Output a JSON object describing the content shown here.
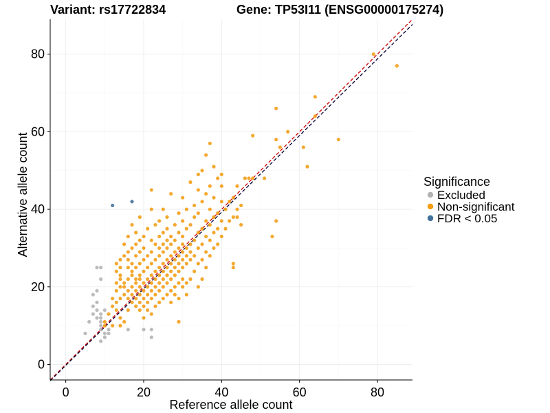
{
  "header": {
    "variant_label": "Variant: rs17722834",
    "gene_label": "Gene: TP53I11 (ENSG00000175274)"
  },
  "legend": {
    "title": "Significance",
    "items": [
      {
        "label": "Excluded",
        "color": "#b3b3b3"
      },
      {
        "label": "Non-significant",
        "color": "#f39c12"
      },
      {
        "label": "FDR < 0.05",
        "color": "#41709a"
      }
    ]
  },
  "chart_data": {
    "type": "scatter",
    "xlabel": "Reference allele count",
    "ylabel": "Alternative allele count",
    "xlim": [
      -4,
      89
    ],
    "ylim": [
      -4,
      89
    ],
    "xticks": [
      0,
      20,
      40,
      60,
      80
    ],
    "yticks": [
      0,
      20,
      40,
      60,
      80
    ],
    "grid": true,
    "legend_position": "right",
    "reference_lines": [
      {
        "kind": "identity",
        "color": "#cc0000",
        "style": "dashed"
      },
      {
        "kind": "fit",
        "color": "#000033",
        "style": "dashed"
      }
    ],
    "series": [
      {
        "name": "Excluded",
        "color": "#b3b3b3",
        "points": [
          [
            5,
            8
          ],
          [
            6,
            11
          ],
          [
            7,
            13
          ],
          [
            7,
            15
          ],
          [
            8,
            12
          ],
          [
            8,
            14
          ],
          [
            8,
            16
          ],
          [
            8,
            19
          ],
          [
            7,
            18
          ],
          [
            8,
            25
          ],
          [
            9,
            6
          ],
          [
            9,
            9
          ],
          [
            9,
            11
          ],
          [
            9,
            12
          ],
          [
            9,
            13
          ],
          [
            9,
            22
          ],
          [
            9,
            25
          ],
          [
            10,
            7
          ],
          [
            10,
            8
          ],
          [
            10,
            14
          ],
          [
            11,
            8
          ],
          [
            11,
            9
          ],
          [
            16,
            9
          ],
          [
            20,
            9
          ],
          [
            22,
            7
          ],
          [
            22,
            9
          ],
          [
            9,
            10
          ]
        ]
      },
      {
        "name": "Non-significant",
        "color": "#f39c12",
        "points": [
          [
            10,
            10
          ],
          [
            10,
            11
          ],
          [
            11,
            13
          ],
          [
            12,
            10
          ],
          [
            12,
            15
          ],
          [
            12,
            17
          ],
          [
            13,
            14
          ],
          [
            13,
            16
          ],
          [
            13,
            19
          ],
          [
            13,
            21
          ],
          [
            13,
            24
          ],
          [
            13,
            26
          ],
          [
            14,
            10
          ],
          [
            14,
            12
          ],
          [
            14,
            17
          ],
          [
            14,
            20
          ],
          [
            14,
            22
          ],
          [
            14,
            23
          ],
          [
            14,
            25
          ],
          [
            14,
            27
          ],
          [
            15,
            11
          ],
          [
            15,
            18
          ],
          [
            15,
            20
          ],
          [
            15,
            21
          ],
          [
            15,
            28
          ],
          [
            15,
            31
          ],
          [
            16,
            14
          ],
          [
            16,
            17
          ],
          [
            16,
            19
          ],
          [
            16,
            22
          ],
          [
            16,
            25
          ],
          [
            16,
            27
          ],
          [
            16,
            29
          ],
          [
            16,
            33
          ],
          [
            17,
            16
          ],
          [
            17,
            18
          ],
          [
            17,
            20
          ],
          [
            17,
            23
          ],
          [
            17,
            24
          ],
          [
            17,
            26
          ],
          [
            17,
            30
          ],
          [
            17,
            36
          ],
          [
            18,
            15
          ],
          [
            18,
            17
          ],
          [
            18,
            19
          ],
          [
            18,
            21
          ],
          [
            18,
            22
          ],
          [
            18,
            25
          ],
          [
            18,
            28
          ],
          [
            18,
            31
          ],
          [
            18,
            34
          ],
          [
            19,
            14
          ],
          [
            19,
            16
          ],
          [
            19,
            18
          ],
          [
            19,
            20
          ],
          [
            19,
            22
          ],
          [
            19,
            23
          ],
          [
            19,
            26
          ],
          [
            19,
            29
          ],
          [
            19,
            32
          ],
          [
            19,
            38
          ],
          [
            20,
            12
          ],
          [
            20,
            15
          ],
          [
            20,
            17
          ],
          [
            20,
            19
          ],
          [
            20,
            21
          ],
          [
            20,
            24
          ],
          [
            20,
            27
          ],
          [
            20,
            30
          ],
          [
            20,
            33
          ],
          [
            21,
            14
          ],
          [
            21,
            16
          ],
          [
            21,
            18
          ],
          [
            21,
            20
          ],
          [
            21,
            22
          ],
          [
            21,
            25
          ],
          [
            21,
            28
          ],
          [
            21,
            35
          ],
          [
            22,
            13
          ],
          [
            22,
            17
          ],
          [
            22,
            19
          ],
          [
            22,
            21
          ],
          [
            22,
            23
          ],
          [
            22,
            26
          ],
          [
            22,
            29
          ],
          [
            22,
            32
          ],
          [
            22,
            40
          ],
          [
            22,
            45
          ],
          [
            23,
            15
          ],
          [
            23,
            18
          ],
          [
            23,
            20
          ],
          [
            23,
            22
          ],
          [
            23,
            24
          ],
          [
            23,
            27
          ],
          [
            23,
            31
          ],
          [
            23,
            36
          ],
          [
            24,
            16
          ],
          [
            24,
            19
          ],
          [
            24,
            21
          ],
          [
            24,
            23
          ],
          [
            24,
            25
          ],
          [
            24,
            28
          ],
          [
            24,
            30
          ],
          [
            24,
            33
          ],
          [
            24,
            37
          ],
          [
            25,
            17
          ],
          [
            25,
            20
          ],
          [
            25,
            22
          ],
          [
            25,
            24
          ],
          [
            25,
            26
          ],
          [
            25,
            29
          ],
          [
            25,
            31
          ],
          [
            25,
            34
          ],
          [
            25,
            40
          ],
          [
            26,
            18
          ],
          [
            26,
            21
          ],
          [
            26,
            23
          ],
          [
            26,
            25
          ],
          [
            26,
            27
          ],
          [
            26,
            30
          ],
          [
            26,
            32
          ],
          [
            26,
            35
          ],
          [
            26,
            38
          ],
          [
            27,
            16
          ],
          [
            27,
            19
          ],
          [
            27,
            22
          ],
          [
            27,
            24
          ],
          [
            27,
            26
          ],
          [
            27,
            28
          ],
          [
            27,
            31
          ],
          [
            27,
            33
          ],
          [
            27,
            44
          ],
          [
            28,
            18
          ],
          [
            28,
            20
          ],
          [
            28,
            23
          ],
          [
            28,
            25
          ],
          [
            28,
            27
          ],
          [
            28,
            29
          ],
          [
            28,
            32
          ],
          [
            28,
            36
          ],
          [
            29,
            11
          ],
          [
            29,
            17
          ],
          [
            29,
            21
          ],
          [
            29,
            24
          ],
          [
            29,
            26
          ],
          [
            29,
            28
          ],
          [
            29,
            30
          ],
          [
            29,
            34
          ],
          [
            29,
            39
          ],
          [
            30,
            20
          ],
          [
            30,
            22
          ],
          [
            30,
            25
          ],
          [
            30,
            27
          ],
          [
            30,
            29
          ],
          [
            30,
            31
          ],
          [
            30,
            33
          ],
          [
            30,
            37
          ],
          [
            30,
            43
          ],
          [
            31,
            18
          ],
          [
            31,
            21
          ],
          [
            31,
            26
          ],
          [
            31,
            28
          ],
          [
            31,
            30
          ],
          [
            31,
            35
          ],
          [
            31,
            40
          ],
          [
            32,
            22
          ],
          [
            32,
            27
          ],
          [
            32,
            29
          ],
          [
            32,
            31
          ],
          [
            32,
            36
          ],
          [
            32,
            47
          ],
          [
            33,
            24
          ],
          [
            33,
            28
          ],
          [
            33,
            32
          ],
          [
            33,
            38
          ],
          [
            33,
            41
          ],
          [
            34,
            20
          ],
          [
            34,
            26
          ],
          [
            34,
            30
          ],
          [
            34,
            34
          ],
          [
            34,
            39
          ],
          [
            34,
            45
          ],
          [
            34,
            49
          ],
          [
            35,
            22
          ],
          [
            35,
            27
          ],
          [
            35,
            31
          ],
          [
            35,
            35
          ],
          [
            35,
            42
          ],
          [
            35,
            50
          ],
          [
            36,
            25
          ],
          [
            36,
            29
          ],
          [
            36,
            33
          ],
          [
            36,
            37
          ],
          [
            36,
            44
          ],
          [
            36,
            54
          ],
          [
            37,
            28
          ],
          [
            37,
            32
          ],
          [
            37,
            36
          ],
          [
            37,
            40
          ],
          [
            37,
            46
          ],
          [
            37,
            57
          ],
          [
            38,
            30
          ],
          [
            38,
            34
          ],
          [
            38,
            38
          ],
          [
            38,
            43
          ],
          [
            38,
            51
          ],
          [
            39,
            31
          ],
          [
            39,
            35
          ],
          [
            39,
            39
          ],
          [
            39,
            48
          ],
          [
            40,
            33
          ],
          [
            40,
            37
          ],
          [
            40,
            42
          ],
          [
            40,
            46
          ],
          [
            40,
            49
          ],
          [
            41,
            35
          ],
          [
            41,
            40
          ],
          [
            42,
            37
          ],
          [
            42,
            42
          ],
          [
            43,
            25
          ],
          [
            43,
            26
          ],
          [
            43,
            38
          ],
          [
            43,
            43
          ],
          [
            44,
            38
          ],
          [
            44,
            40
          ],
          [
            44,
            46
          ],
          [
            45,
            36
          ],
          [
            45,
            41
          ],
          [
            46,
            48
          ],
          [
            47,
            48
          ],
          [
            48,
            48
          ],
          [
            48,
            59
          ],
          [
            51,
            48
          ],
          [
            53,
            33
          ],
          [
            54,
            37
          ],
          [
            54,
            58
          ],
          [
            54,
            66
          ],
          [
            55,
            56
          ],
          [
            57,
            60
          ],
          [
            61,
            56
          ],
          [
            62,
            51
          ],
          [
            64,
            69
          ],
          [
            64,
            64
          ],
          [
            70,
            58
          ],
          [
            79,
            80
          ],
          [
            85,
            77
          ]
        ]
      },
      {
        "name": "FDR < 0.05",
        "color": "#41709a",
        "points": [
          [
            12,
            41
          ],
          [
            17,
            42
          ]
        ]
      }
    ]
  }
}
